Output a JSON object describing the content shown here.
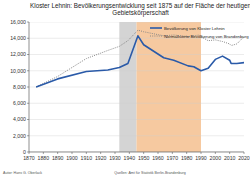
{
  "chart_data": {
    "type": "line",
    "title": "Kloster Lehnin: Bevölkerungsentwicklung seit 1875 auf der Fläche der heutigen Gebietskörperschaft",
    "x": [
      1875,
      1890,
      1910,
      1925,
      1933,
      1939,
      1946,
      1950,
      1964,
      1971,
      1981,
      1985,
      1989,
      1990,
      1995,
      2000,
      2005,
      2010,
      2011,
      2015,
      2020
    ],
    "series": [
      {
        "name": "Bevölkerung von Kloster Lehnin",
        "color": "#2a5aa8",
        "line_style": "solid",
        "values": [
          8000,
          9000,
          9900,
          10100,
          10400,
          10900,
          14300,
          13200,
          11600,
          11300,
          10600,
          10500,
          10100,
          10000,
          10300,
          11400,
          11800,
          11300,
          10900,
          10900,
          11000
        ]
      },
      {
        "name": "Normalisierte Bevölkerung von Brandenburg",
        "color": "#888888",
        "line_style": "dotted",
        "values": [
          8000,
          9300,
          11500,
          12500,
          13000,
          13700,
          15000,
          14800,
          14300,
          14400,
          14200,
          14300,
          14400,
          14200,
          13700,
          13800,
          13600,
          13300,
          13100,
          13300,
          14200
        ]
      }
    ],
    "periods": [
      {
        "start": 1933,
        "end": 1945,
        "color": "#d4d4d4"
      },
      {
        "start": 1945,
        "end": 1990,
        "color": "#f6c9a0"
      }
    ],
    "xlim": [
      1870,
      2020
    ],
    "xticks": [
      1870,
      1880,
      1890,
      1900,
      1910,
      1920,
      1930,
      1940,
      1950,
      1960,
      1970,
      1980,
      1990,
      2000,
      2010,
      2020
    ],
    "ylim": [
      0,
      16000
    ],
    "yticks": [
      0,
      {
        "value": 2000,
        "label": "2,000"
      },
      {
        "value": 4000,
        "label": "4,000"
      },
      {
        "value": 6000,
        "label": "6,000"
      },
      {
        "value": 8000,
        "label": "8,000"
      },
      {
        "value": 10000,
        "label": "10,000"
      },
      {
        "value": 12000,
        "label": "12,000"
      },
      {
        "value": 14000,
        "label": "14,000"
      },
      {
        "value": 16000,
        "label": "16,000"
      }
    ],
    "grid": true,
    "legend": "upper right",
    "annotations": [
      "Autor: Hans G. Oberlack",
      "Quellen: Amt für Statistik Berlin-Brandenburg"
    ]
  }
}
